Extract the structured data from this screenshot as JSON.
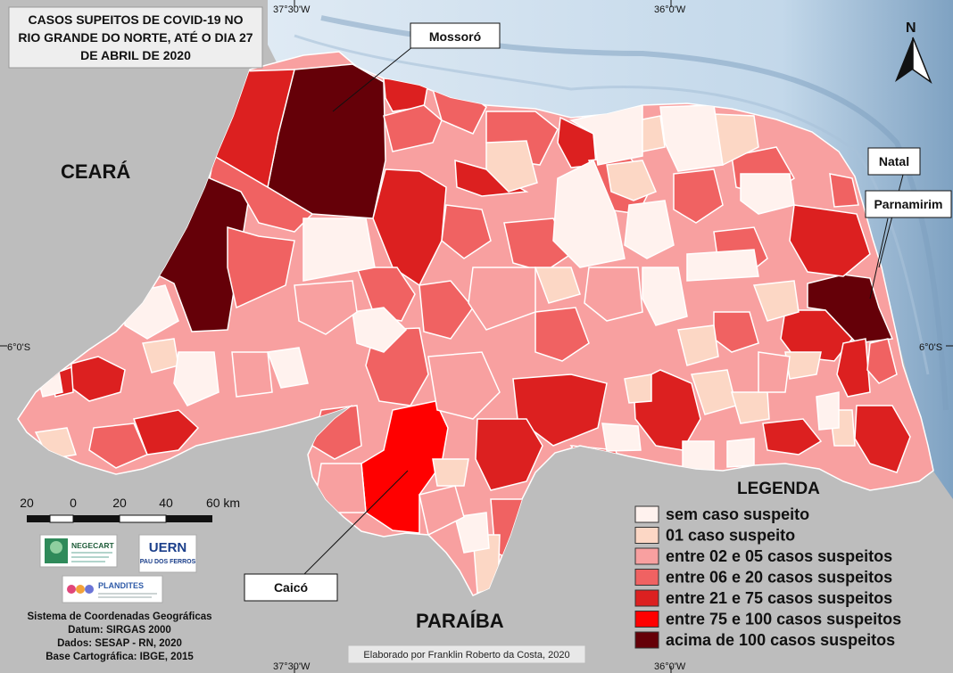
{
  "title": {
    "line1": "CASOS SUPEITOS DE COVID-19 NO",
    "line2": "RIO GRANDE DO NORTE, ATÉ O DIA 27",
    "line3": "DE ABRIL DE 2020"
  },
  "graticule": {
    "top_left": "37°30'W",
    "top_right": "36°0'W",
    "bottom_left": "37°30'W",
    "bottom_right": "36°0'W",
    "left": "6°0'S",
    "right": "6°0'S"
  },
  "states": {
    "ceara": "CEARÁ",
    "paraiba": "PARAÍBA"
  },
  "callouts": {
    "mossoro": "Mossoró",
    "natal": "Natal",
    "parnamirim": "Parnamirim",
    "caico": "Caicó"
  },
  "north_arrow": "N",
  "legend": {
    "title": "LEGENDA",
    "items": [
      {
        "label": "sem caso suspeito",
        "color": "#fff2ee"
      },
      {
        "label": "01 caso suspeito",
        "color": "#fcd7c5"
      },
      {
        "label": "entre 02 e 05 casos suspeitos",
        "color": "#f8a0a0"
      },
      {
        "label": "entre 06 e 20 casos suspeitos",
        "color": "#f06262"
      },
      {
        "label": "entre 21 e 75 casos suspeitos",
        "color": "#dc2020"
      },
      {
        "label": "entre 75 e 100 casos suspeitos",
        "color": "#ff0000"
      },
      {
        "label": "acima de 100 casos suspeitos",
        "color": "#650008"
      }
    ]
  },
  "scale_bar": {
    "labels": [
      "20",
      "0",
      "20",
      "40",
      "60 km"
    ]
  },
  "logos": {
    "negecart": "NEGECART",
    "uern": "UERN",
    "uern_sub": "PAU DOS FERROS",
    "plandites": "PLANDITES"
  },
  "metadata": {
    "line1": "Sistema de Coordenadas Geográficas",
    "line2": "Datum: SIRGAS 2000",
    "line3": "Dados: SESAP - RN, 2020",
    "line4": "Base Cartográfica: IBGE, 2015"
  },
  "credit": "Elaborado por Franklin Roberto da Costa, 2020",
  "colors": {
    "land": "#bdbdbd",
    "sea": "#c9dcec",
    "deep_sea": "#8fb0cc",
    "border": "#ffffff"
  }
}
